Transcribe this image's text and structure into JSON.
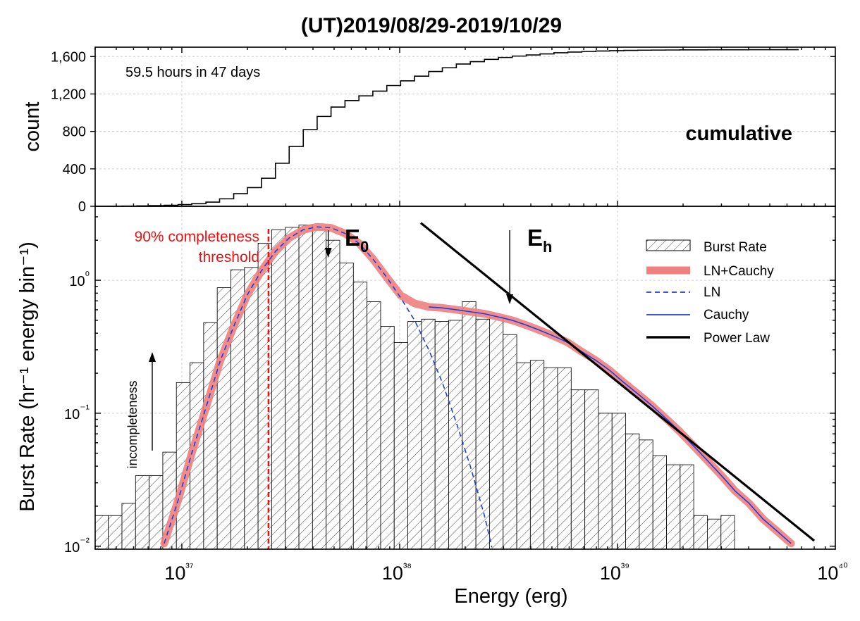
{
  "chart_data": [
    {
      "type": "line",
      "title": "(UT)2019/08/29-2019/10/29",
      "ylabel": "count",
      "annotation": "59.5 hours in 47 days",
      "label": "cumulative",
      "xscale": "log",
      "xlim": [
        4e+36,
        1e+40
      ],
      "ylim": [
        0,
        1700
      ],
      "yticks": [
        0,
        400,
        800,
        1200,
        1600
      ],
      "ytick_labels": [
        "0",
        "400",
        "800",
        "1,200",
        "1,600"
      ],
      "grid": true,
      "series": [
        {
          "style": "step",
          "x": [
            4e+36,
            4.6e+36,
            5.3e+36,
            6.2e+36,
            7.1e+36,
            8.3e+36,
            9.6e+36,
            1.11e+37,
            1.29e+37,
            1.49e+37,
            1.73e+37,
            2e+37,
            2.32e+37,
            2.69e+37,
            3.11e+37,
            3.61e+37,
            4.18e+37,
            4.84e+37,
            5.61e+37,
            6.5e+37,
            7.53e+37,
            8.73e+37,
            1.01e+38,
            1.17e+38,
            1.36e+38,
            1.57e+38,
            1.82e+38,
            2.11e+38,
            2.45e+38,
            2.84e+38,
            3.29e+38,
            3.81e+38,
            4.41e+38,
            5.11e+38,
            5.92e+38,
            6.86e+38,
            7.95e+38,
            9.21e+38,
            1.07e+39,
            1.24e+39,
            1.43e+39,
            1.66e+39,
            1.93e+39,
            2.23e+39,
            2.59e+39,
            3e+39,
            3.47e+39,
            4.02e+39,
            4.66e+39,
            5.4e+39,
            6.26e+39
          ],
          "values": [
            0,
            1,
            2,
            4,
            7,
            11,
            18,
            28,
            45,
            80,
            135,
            200,
            300,
            460,
            640,
            820,
            960,
            1060,
            1130,
            1180,
            1230,
            1290,
            1340,
            1390,
            1440,
            1480,
            1520,
            1545,
            1570,
            1590,
            1605,
            1617,
            1628,
            1640,
            1648,
            1654,
            1659,
            1663,
            1666,
            1668,
            1669,
            1670,
            1671,
            1671,
            1672,
            1672,
            1672,
            1673,
            1673,
            1673,
            1673
          ]
        }
      ]
    },
    {
      "type": "bar",
      "ylabel": "Burst Rate (hr⁻¹ energy bin⁻¹)",
      "xlabel": "Energy (erg)",
      "xscale": "log",
      "yscale": "log",
      "xlim": [
        4e+36,
        1e+40
      ],
      "ylim": [
        0.0095,
        3.6
      ],
      "xtick_labels": [
        "10³⁷",
        "10³⁸",
        "10³⁹",
        "10⁴⁰"
      ],
      "ytick_labels": [
        "10⁻²",
        "10⁻¹",
        "10⁰"
      ],
      "grid": true,
      "legend_position": "top-right",
      "legend": [
        "Burst Rate",
        "LN+Cauchy",
        "LN",
        "Cauchy",
        "Power Law"
      ],
      "annotations": {
        "threshold": [
          "90% completeness",
          "threshold"
        ],
        "threshold_x": 2.5e+37,
        "E0": "E",
        "E0_sub": "0",
        "E0_x": 4.7e+37,
        "Eh": "E",
        "Eh_sub": "h",
        "Eh_x": 3.2e+38,
        "incompleteness": "incompleteness"
      },
      "bins": {
        "log_start": 36.6,
        "log_width": 0.0625,
        "values": [
          0.017,
          0.017,
          0.021,
          0.034,
          0.034,
          0.051,
          0.17,
          0.24,
          0.48,
          0.88,
          1.2,
          1.25,
          1.9,
          2.4,
          2.5,
          2.6,
          2.4,
          2.0,
          1.35,
          0.97,
          0.69,
          0.45,
          0.34,
          0.49,
          0.51,
          0.49,
          0.5,
          0.69,
          0.51,
          0.53,
          0.39,
          0.24,
          0.25,
          0.22,
          0.22,
          0.15,
          0.15,
          0.1,
          0.1,
          0.07,
          0.063,
          0.048,
          0.041,
          0.041,
          0.017,
          0.016,
          0.017
        ]
      },
      "series": [
        {
          "name": "LN+Cauchy",
          "x": [
            8.3e+36,
            9.6e+36,
            1.11e+37,
            1.29e+37,
            1.49e+37,
            1.73e+37,
            2e+37,
            2.32e+37,
            2.69e+37,
            3.11e+37,
            3.61e+37,
            4.18e+37,
            4.84e+37,
            5.61e+37,
            6.5e+37,
            7.53e+37,
            8.73e+37,
            1.01e+38,
            1.17e+38,
            1.36e+38,
            1.57e+38,
            1.82e+38,
            2.11e+38,
            2.45e+38,
            2.84e+38,
            3.29e+38,
            3.81e+38,
            4.41e+38,
            5.11e+38,
            5.92e+38,
            6.86e+38,
            7.95e+38,
            9.21e+38,
            1.07e+39,
            1.24e+39,
            1.43e+39,
            1.66e+39,
            1.93e+39,
            2.23e+39,
            2.59e+39,
            3e+39,
            3.47e+39,
            4.02e+39,
            4.66e+39,
            5.4e+39,
            6.26e+39
          ],
          "values": [
            0.0105,
            0.022,
            0.05,
            0.11,
            0.24,
            0.45,
            0.78,
            1.18,
            1.65,
            2.08,
            2.4,
            2.52,
            2.48,
            2.25,
            1.9,
            1.45,
            1.05,
            0.77,
            0.67,
            0.63,
            0.62,
            0.6,
            0.58,
            0.56,
            0.53,
            0.5,
            0.46,
            0.42,
            0.38,
            0.34,
            0.29,
            0.25,
            0.21,
            0.17,
            0.14,
            0.115,
            0.092,
            0.073,
            0.057,
            0.044,
            0.034,
            0.026,
            0.021,
            0.016,
            0.013,
            0.0105
          ]
        },
        {
          "name": "LN",
          "x": [
            8.3e+36,
            9.6e+36,
            1.11e+37,
            1.29e+37,
            1.49e+37,
            1.73e+37,
            2e+37,
            2.32e+37,
            2.69e+37,
            3.11e+37,
            3.61e+37,
            4.18e+37,
            4.84e+37,
            5.61e+37,
            6.5e+37,
            7.53e+37,
            8.73e+37,
            1.01e+38,
            1.17e+38,
            1.36e+38,
            1.57e+38,
            1.82e+38,
            2.11e+38,
            2.45e+38,
            2.65e+38
          ],
          "values": [
            0.0105,
            0.022,
            0.05,
            0.11,
            0.24,
            0.45,
            0.78,
            1.18,
            1.65,
            2.08,
            2.4,
            2.52,
            2.48,
            2.25,
            1.9,
            1.45,
            1.05,
            0.74,
            0.5,
            0.3,
            0.17,
            0.085,
            0.04,
            0.017,
            0.0098
          ]
        },
        {
          "name": "Cauchy",
          "x": [
            1.36e+38,
            1.57e+38,
            1.82e+38,
            2.11e+38,
            2.45e+38,
            2.84e+38,
            3.29e+38,
            3.81e+38,
            4.41e+38,
            5.11e+38,
            5.92e+38,
            6.86e+38,
            7.95e+38,
            9.21e+38,
            1.07e+39,
            1.24e+39,
            1.43e+39,
            1.66e+39,
            1.93e+39,
            2.23e+39,
            2.59e+39,
            3e+39,
            3.47e+39,
            4.02e+39,
            4.66e+39,
            5.4e+39,
            6.26e+39
          ],
          "values": [
            0.63,
            0.62,
            0.6,
            0.58,
            0.56,
            0.53,
            0.5,
            0.46,
            0.42,
            0.38,
            0.34,
            0.29,
            0.25,
            0.21,
            0.17,
            0.14,
            0.115,
            0.092,
            0.073,
            0.057,
            0.044,
            0.034,
            0.026,
            0.021,
            0.016,
            0.013,
            0.0105
          ]
        },
        {
          "name": "Power Law",
          "x": [
            1.25e+38,
            8e+39
          ],
          "values": [
            2.7,
            0.011
          ]
        }
      ]
    }
  ]
}
